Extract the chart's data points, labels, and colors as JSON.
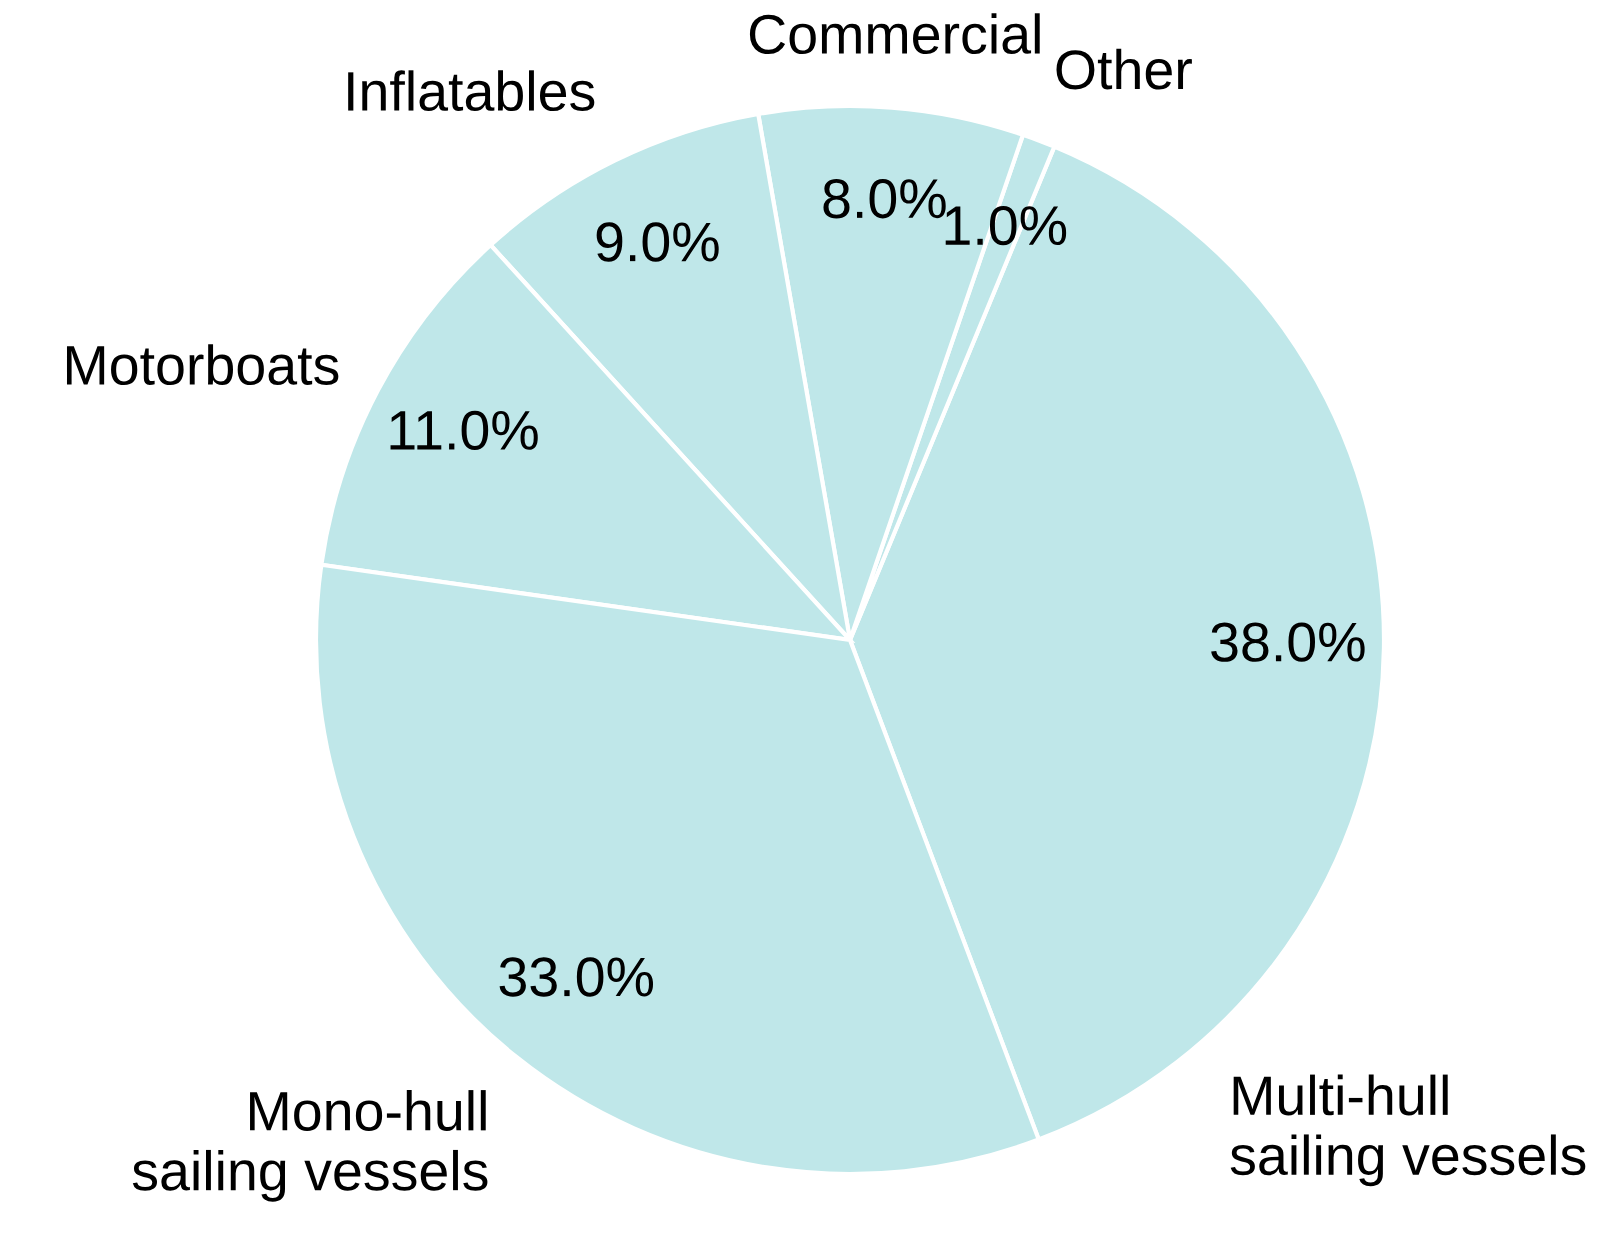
{
  "chart_data": {
    "type": "pie",
    "categories": [
      "Multi-hull\nsailing vessels",
      "Other",
      "Commercial",
      "Inflatables",
      "Motorboats",
      "Mono-hull\nsailing vessels"
    ],
    "values": [
      38,
      1,
      8,
      9,
      11,
      33
    ],
    "value_labels": [
      "38.0%",
      "1.0%",
      "8.0%",
      "9.0%",
      "11.0%",
      "33.0%"
    ],
    "colors": [
      "#bfe7e9",
      "#bfe7e9",
      "#bfe7e9",
      "#bfe7e9",
      "#bfe7e9",
      "#bfe7e9"
    ],
    "data_labels": true,
    "legend": false
  }
}
